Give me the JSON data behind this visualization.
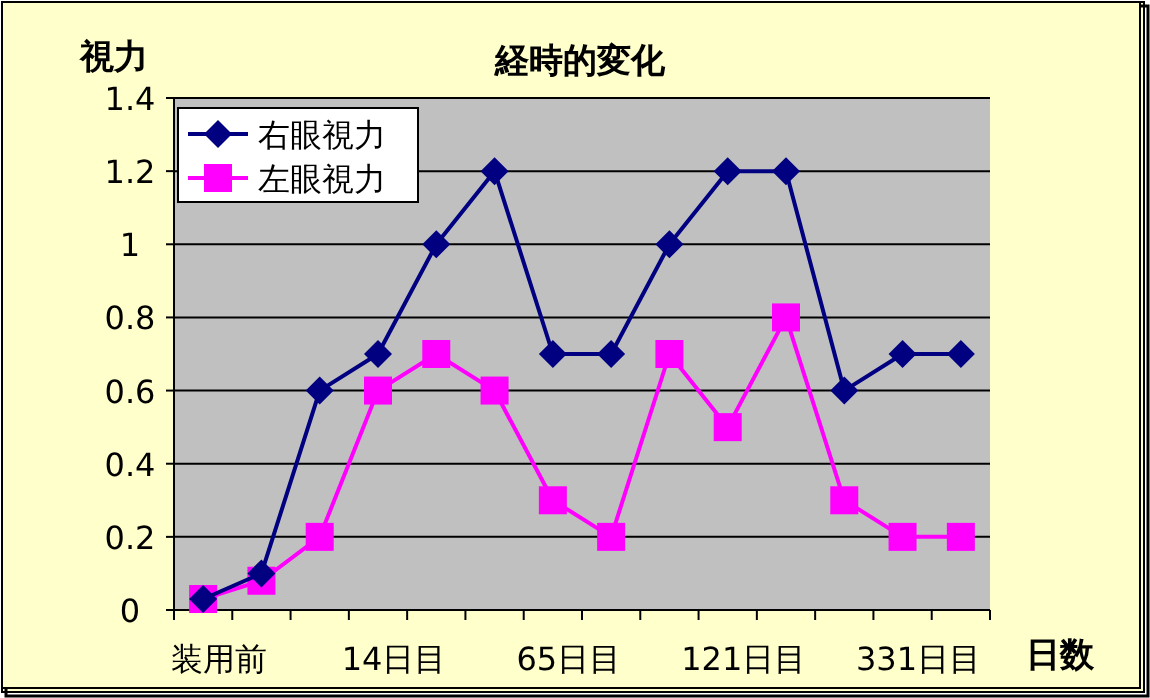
{
  "chart_data": {
    "type": "line",
    "title": "経時的変化",
    "xlabel": "日数",
    "ylabel": "視力",
    "categories": [
      "装用前",
      null,
      null,
      "14日目",
      null,
      null,
      "65日目",
      null,
      null,
      "121日目",
      null,
      null,
      "331日目",
      null
    ],
    "series": [
      {
        "name": "右眼視力",
        "color": "#000080",
        "marker": "diamond",
        "values": [
          0.03,
          0.1,
          0.6,
          0.7,
          1.0,
          1.2,
          0.7,
          0.7,
          1.0,
          1.2,
          1.2,
          0.6,
          0.7,
          0.7
        ]
      },
      {
        "name": "左眼視力",
        "color": "#ff00ff",
        "marker": "square",
        "values": [
          0.03,
          0.08,
          0.2,
          0.6,
          0.7,
          0.6,
          0.3,
          0.2,
          0.7,
          0.5,
          0.8,
          0.3,
          0.2,
          0.2
        ]
      }
    ],
    "ylim": [
      0,
      1.4
    ],
    "yticks": [
      0,
      0.2,
      0.4,
      0.6,
      0.8,
      1,
      1.2,
      1.4
    ],
    "grid": "y",
    "legend": "top left"
  }
}
